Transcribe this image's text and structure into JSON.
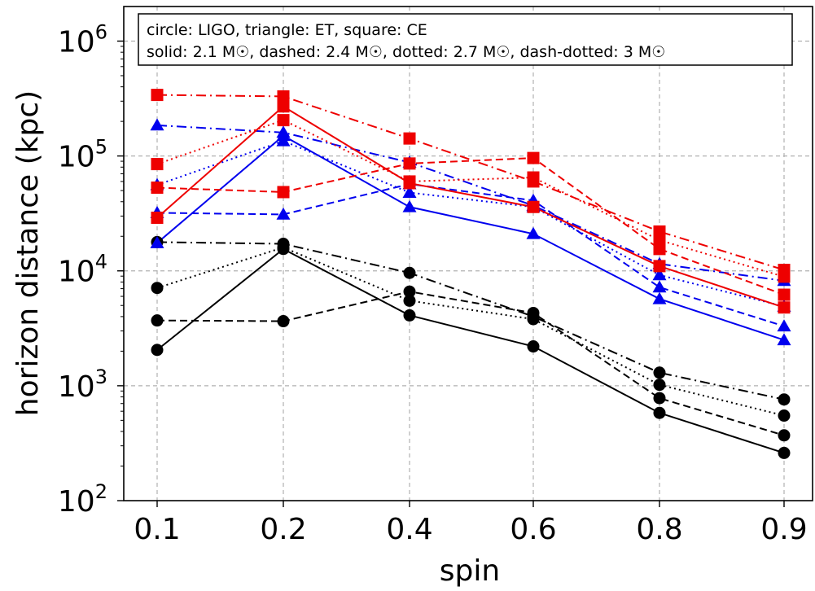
{
  "chart_data": {
    "type": "line",
    "xlabel": "spin",
    "ylabel": "horizon distance (kpc)",
    "yscale": "log",
    "ylim": [
      100,
      2000000
    ],
    "xlim_spin_range": [
      "0.1",
      "0.9"
    ],
    "x_categories": [
      "0.1",
      "0.2",
      "0.4",
      "0.6",
      "0.8",
      "0.9"
    ],
    "y_ticks": [
      {
        "value": 100,
        "base": "10",
        "exp": "2"
      },
      {
        "value": 1000,
        "base": "10",
        "exp": "3"
      },
      {
        "value": 10000,
        "base": "10",
        "exp": "4"
      },
      {
        "value": 100000,
        "base": "10",
        "exp": "5"
      },
      {
        "value": 1000000,
        "base": "10",
        "exp": "6"
      }
    ],
    "grid": true,
    "legend_position": "top",
    "legend_lines": [
      "circle: LIGO, triangle: ET, square: CE",
      "solid: 2.1 M☉, dashed: 2.4 M☉, dotted: 2.7 M☉, dash-dotted: 3 M☉"
    ],
    "series": [
      {
        "detector": "LIGO",
        "marker": "circle",
        "mass": "2.1",
        "style": "solid",
        "color": "#000000",
        "values": [
          2050,
          15500,
          4100,
          2200,
          580,
          260
        ]
      },
      {
        "detector": "LIGO",
        "marker": "circle",
        "mass": "2.4",
        "style": "dashed",
        "color": "#000000",
        "values": [
          3700,
          3650,
          6600,
          4300,
          780,
          370
        ]
      },
      {
        "detector": "LIGO",
        "marker": "circle",
        "mass": "2.7",
        "style": "dotted",
        "color": "#000000",
        "values": [
          7100,
          16000,
          5500,
          3800,
          1020,
          550
        ]
      },
      {
        "detector": "LIGO",
        "marker": "circle",
        "mass": "3",
        "style": "dash-dotted",
        "color": "#000000",
        "values": [
          17800,
          17200,
          9600,
          4000,
          1300,
          760
        ]
      },
      {
        "detector": "ET",
        "marker": "triangle",
        "mass": "2.1",
        "style": "solid",
        "color": "#0000ee",
        "values": [
          17500,
          150000,
          36000,
          21000,
          5700,
          2500
        ]
      },
      {
        "detector": "ET",
        "marker": "triangle",
        "mass": "2.4",
        "style": "dashed",
        "color": "#0000ee",
        "values": [
          32000,
          31000,
          57000,
          41000,
          7200,
          3300
        ]
      },
      {
        "detector": "ET",
        "marker": "triangle",
        "mass": "2.7",
        "style": "dotted",
        "color": "#0000ee",
        "values": [
          56000,
          135000,
          48000,
          36000,
          9200,
          4900
        ]
      },
      {
        "detector": "ET",
        "marker": "triangle",
        "mass": "3",
        "style": "dash-dotted",
        "color": "#0000ee",
        "values": [
          185000,
          160000,
          88000,
          37000,
          11500,
          8200
        ]
      },
      {
        "detector": "CE",
        "marker": "square",
        "mass": "2.1",
        "style": "solid",
        "color": "#ee0000",
        "values": [
          29000,
          270000,
          58000,
          36000,
          11000,
          4800
        ]
      },
      {
        "detector": "CE",
        "marker": "square",
        "mass": "2.4",
        "style": "dashed",
        "color": "#ee0000",
        "values": [
          53000,
          48500,
          86000,
          96000,
          15500,
          6200
        ]
      },
      {
        "detector": "CE",
        "marker": "square",
        "mass": "2.7",
        "style": "dotted",
        "color": "#ee0000",
        "values": [
          85000,
          205000,
          60000,
          65000,
          18500,
          8900
        ]
      },
      {
        "detector": "CE",
        "marker": "square",
        "mass": "3",
        "style": "dash-dotted",
        "color": "#ee0000",
        "values": [
          340000,
          330000,
          142000,
          60000,
          22000,
          10200
        ]
      }
    ]
  }
}
